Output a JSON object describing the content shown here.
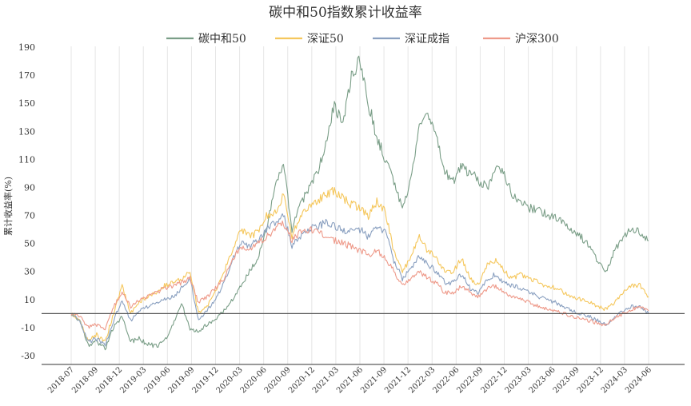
{
  "chart_data": {
    "type": "line",
    "title": "碳中和50指数累计收益率",
    "ylabel": "累计收益率(%)",
    "xlabel": "",
    "ylim": [
      -40,
      190
    ],
    "yticks": [
      190,
      170,
      150,
      130,
      110,
      90,
      70,
      50,
      30,
      10,
      -10,
      -30
    ],
    "x_tick_labels": [
      "2018-07",
      "2018-09",
      "2018-12",
      "2019-03",
      "2019-06",
      "2019-09",
      "2019-12",
      "2020-03",
      "2020-06",
      "2020-09",
      "2020-12",
      "2021-03",
      "2021-06",
      "2021-09",
      "2021-12",
      "2022-03",
      "2022-06",
      "2022-09",
      "2022-12",
      "2023-03",
      "2023-06",
      "2023-09",
      "2023-12",
      "2024-03",
      "2024-06"
    ],
    "x_range": [
      "2018-07",
      "2024-06"
    ],
    "grid": "vertical",
    "legend_position": "top-center",
    "series": [
      {
        "name": "碳中和50",
        "color": "#7a9e87",
        "values": [
          0,
          -5,
          -22,
          -20,
          -25,
          -10,
          -2,
          -20,
          -18,
          -22,
          -23,
          -20,
          -8,
          8,
          -12,
          -12,
          -8,
          -4,
          2,
          10,
          20,
          30,
          40,
          60,
          90,
          105,
          60,
          78,
          90,
          100,
          120,
          150,
          135,
          170,
          180,
          150,
          125,
          110,
          95,
          75,
          95,
          135,
          145,
          125,
          100,
          95,
          105,
          100,
          95,
          90,
          105,
          100,
          85,
          80,
          75,
          75,
          70,
          68,
          65,
          60,
          55,
          48,
          38,
          30,
          45,
          55,
          60,
          58,
          52
        ]
      },
      {
        "name": "深证50",
        "color": "#f5c75c",
        "values": [
          0,
          -5,
          -20,
          -15,
          -20,
          0,
          20,
          0,
          8,
          12,
          15,
          20,
          22,
          25,
          30,
          0,
          5,
          15,
          30,
          45,
          60,
          55,
          58,
          70,
          72,
          85,
          55,
          70,
          75,
          80,
          85,
          88,
          82,
          78,
          75,
          70,
          80,
          72,
          45,
          30,
          40,
          55,
          45,
          40,
          30,
          30,
          40,
          25,
          20,
          35,
          38,
          30,
          25,
          28,
          25,
          22,
          20,
          18,
          15,
          12,
          10,
          8,
          5,
          3,
          8,
          15,
          20,
          20,
          12
        ]
      },
      {
        "name": "深证成指",
        "color": "#8aa0c0",
        "values": [
          0,
          -5,
          -20,
          -18,
          -22,
          -5,
          10,
          -5,
          2,
          5,
          8,
          10,
          12,
          18,
          25,
          -5,
          2,
          10,
          22,
          38,
          50,
          48,
          52,
          60,
          65,
          70,
          48,
          55,
          60,
          62,
          65,
          62,
          60,
          58,
          60,
          55,
          62,
          58,
          38,
          25,
          32,
          42,
          35,
          30,
          22,
          22,
          28,
          18,
          15,
          25,
          28,
          22,
          20,
          18,
          15,
          12,
          10,
          8,
          5,
          2,
          0,
          -2,
          -5,
          -8,
          -2,
          2,
          5,
          5,
          0
        ]
      },
      {
        "name": "沪深300",
        "color": "#ee9a8a",
        "values": [
          0,
          -2,
          -10,
          -8,
          -12,
          5,
          15,
          5,
          10,
          12,
          15,
          18,
          20,
          22,
          25,
          8,
          12,
          18,
          25,
          38,
          48,
          45,
          50,
          55,
          60,
          65,
          52,
          58,
          60,
          58,
          55,
          52,
          50,
          48,
          45,
          42,
          45,
          40,
          30,
          20,
          25,
          30,
          25,
          22,
          15,
          15,
          20,
          15,
          12,
          18,
          20,
          15,
          12,
          10,
          8,
          5,
          3,
          2,
          0,
          -2,
          -3,
          -5,
          -7,
          -8,
          -3,
          0,
          3,
          5,
          2
        ]
      }
    ]
  }
}
